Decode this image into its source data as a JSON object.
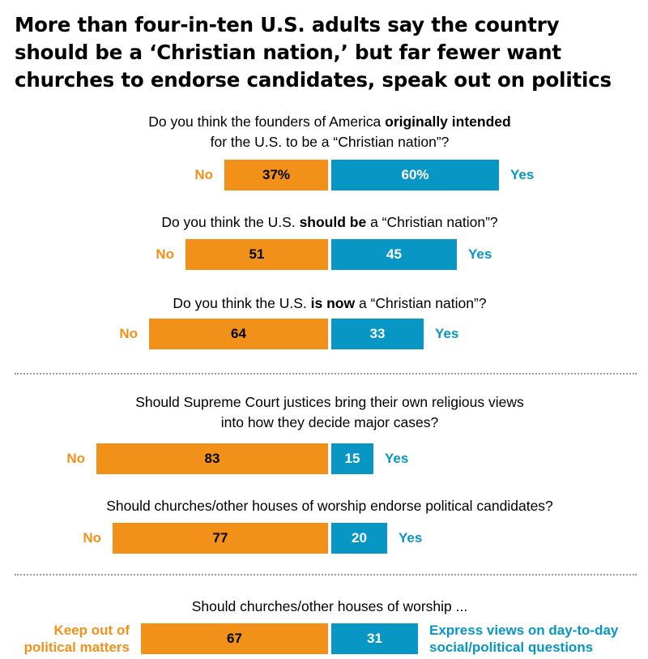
{
  "title_lines": [
    "More than four-in-ten U.S. adults say the country",
    "should be a ‘Christian nation,’ but far fewer want",
    "churches to endorse candidates, speak out on politics"
  ],
  "colors": {
    "no": "#f2911a",
    "yes": "#0896c4",
    "divider": "#9a9a9a"
  },
  "chart_data": {
    "type": "bar",
    "subtype": "diverging-horizontal",
    "title": "More than four-in-ten U.S. adults say the country should be a ‘Christian nation,’ but far fewer want churches to endorse candidates, speak out on politics",
    "xlabel": "",
    "ylabel": "",
    "items": [
      {
        "question_segments": [
          [
            [
              "Do you think the founders of America ",
              false
            ],
            [
              "originally intended",
              true
            ]
          ],
          [
            [
              "for the U.S. to be a “Christian nation”?",
              false
            ]
          ]
        ],
        "no_label": "No",
        "yes_label": "Yes",
        "no_value": 37,
        "yes_value": 60,
        "no_text": "37%",
        "yes_text": "60%"
      },
      {
        "question_segments": [
          [
            [
              "Do you think the U.S. ",
              false
            ],
            [
              "should be",
              true
            ],
            [
              " a “Christian nation”?",
              false
            ]
          ]
        ],
        "no_label": "No",
        "yes_label": "Yes",
        "no_value": 51,
        "yes_value": 45,
        "no_text": "51",
        "yes_text": "45"
      },
      {
        "question_segments": [
          [
            [
              "Do you think the U.S. ",
              false
            ],
            [
              "is now",
              true
            ],
            [
              " a “Christian nation”?",
              false
            ]
          ]
        ],
        "no_label": "No",
        "yes_label": "Yes",
        "no_value": 64,
        "yes_value": 33,
        "no_text": "64",
        "yes_text": "33"
      },
      {
        "question_segments": [
          [
            [
              "Should Supreme Court justices bring their own religious views",
              false
            ]
          ],
          [
            [
              "into how they decide major cases?",
              false
            ]
          ]
        ],
        "no_label": "No",
        "yes_label": "Yes",
        "no_value": 83,
        "yes_value": 15,
        "no_text": "83",
        "yes_text": "15"
      },
      {
        "question_segments": [
          [
            [
              "Should churches/other houses of worship endorse political candidates?",
              false
            ]
          ]
        ],
        "no_label": "No",
        "yes_label": "Yes",
        "no_value": 77,
        "yes_value": 20,
        "no_text": "77",
        "yes_text": "20"
      },
      {
        "question_segments": [
          [
            [
              "Should churches/other houses of worship ...",
              false
            ]
          ]
        ],
        "no_label_lines": [
          "Keep out of",
          "political matters"
        ],
        "yes_label_lines": [
          "Express views on day-to-day",
          "social/political questions"
        ],
        "no_value": 67,
        "yes_value": 31,
        "no_text": "67",
        "yes_text": "31"
      }
    ],
    "dividers_after_items": [
      2,
      4
    ]
  }
}
